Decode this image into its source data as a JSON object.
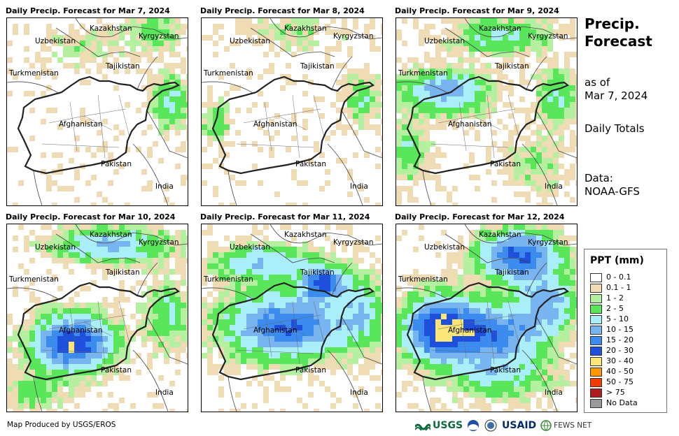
{
  "panels": [
    {
      "title": "Daily Precip. Forecast for Mar 7, 2024"
    },
    {
      "title": "Daily Precip. Forecast for Mar 8, 2024"
    },
    {
      "title": "Daily Precip. Forecast for Mar 9, 2024"
    },
    {
      "title": "Daily Precip. Forecast for Mar 10, 2024"
    },
    {
      "title": "Daily Precip. Forecast for Mar 11, 2024"
    },
    {
      "title": "Daily Precip. Forecast for Mar 12, 2024"
    }
  ],
  "map_labels": {
    "kazakhstan": "Kazakhstan",
    "uzbekistan": "Uzbekistan",
    "kyrgyzstan": "Kyrgyzstan",
    "tajikistan": "Tajikistan",
    "turkmenistan": "Turkmenistan",
    "afghanistan": "Afghanistan",
    "pakistan": "Pakistan",
    "india": "India"
  },
  "side": {
    "title_line1": "Precip.",
    "title_line2": "Forecast",
    "as_of_line1": "as of",
    "as_of_line2": "Mar 7, 2024",
    "daily_totals": "Daily Totals",
    "data_line1": "Data:",
    "data_line2": "NOAA-GFS"
  },
  "legend": {
    "title": "PPT (mm)",
    "items": [
      {
        "label": "0 - 0.1",
        "color": "#ffffff"
      },
      {
        "label": "0.1 - 1",
        "color": "#f0dcb4"
      },
      {
        "label": "1 - 2",
        "color": "#b4f0a0"
      },
      {
        "label": "2 - 5",
        "color": "#5ae65a"
      },
      {
        "label": "5 - 10",
        "color": "#aaeefa"
      },
      {
        "label": "10 - 15",
        "color": "#78b4f0"
      },
      {
        "label": "15 - 20",
        "color": "#3c8cf0"
      },
      {
        "label": "20 - 30",
        "color": "#1e50dc"
      },
      {
        "label": "30 - 40",
        "color": "#fae678"
      },
      {
        "label": "40 - 50",
        "color": "#fa9600"
      },
      {
        "label": "50 - 75",
        "color": "#f03c00"
      },
      {
        "label": "> 75",
        "color": "#aa1e1e"
      },
      {
        "label": "No Data",
        "color": "#999999"
      }
    ]
  },
  "credit": "Map Produced by USGS/EROS",
  "logos": {
    "usgs": "USGS",
    "usaid": "USAID",
    "fewsnet": "FEWS NET"
  }
}
